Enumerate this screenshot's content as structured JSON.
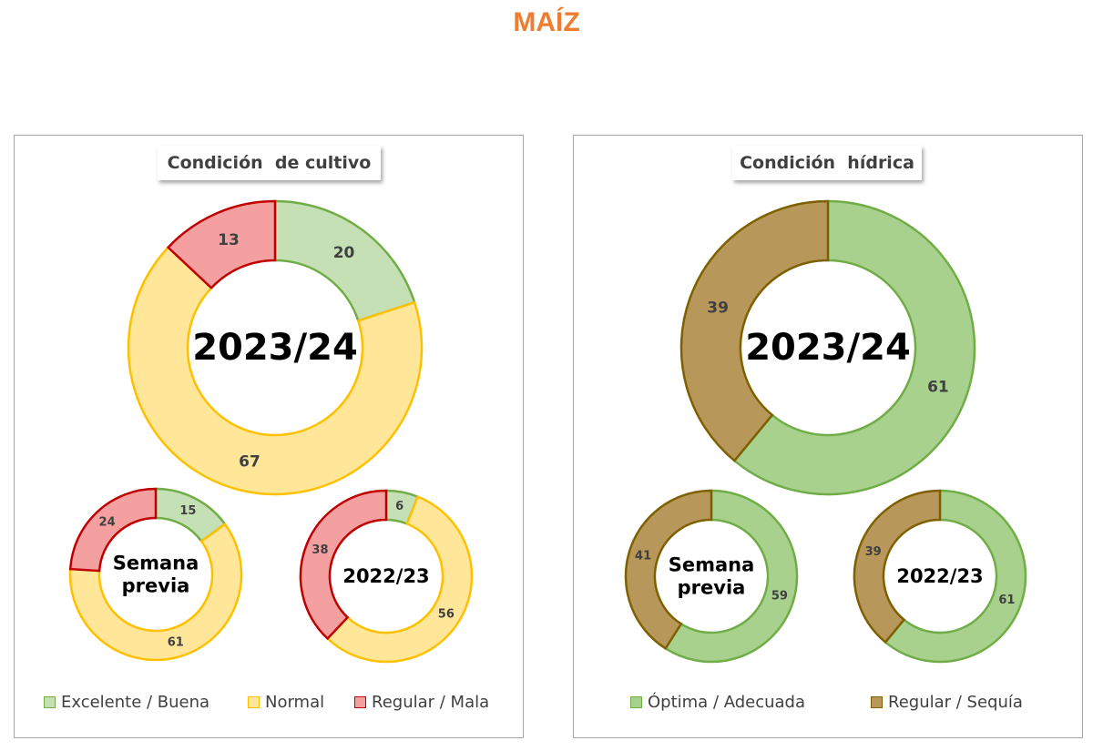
{
  "title": "MAÍZ",
  "title_color": "#ed7d31",
  "panels": [
    {
      "title": "Condición  de cultivo",
      "legend": [
        {
          "label": "Excelente / Buena",
          "fill": "#c5e0b4",
          "stroke": "#70ad47"
        },
        {
          "label": "Normal",
          "fill": "#ffe699",
          "stroke": "#ffc000"
        },
        {
          "label": "Regular / Mala",
          "fill": "#f4a0a0",
          "stroke": "#c00000"
        }
      ]
    },
    {
      "title": "Condición  hídrica",
      "legend": [
        {
          "label": "Óptima / Adecuada",
          "fill": "#a9d18e",
          "stroke": "#70ad47"
        },
        {
          "label": "Regular / Sequía",
          "fill": "#b8975a",
          "stroke": "#7f6000"
        }
      ]
    }
  ],
  "chart_data": [
    {
      "type": "pie",
      "variant": "donut",
      "center_label": "2023/24",
      "categories": [
        "Excelente / Buena",
        "Normal",
        "Regular / Mala"
      ],
      "values": [
        20,
        67,
        13
      ],
      "colors": [
        "#c5e0b4",
        "#ffe699",
        "#f4a0a0"
      ],
      "strokes": [
        "#70ad47",
        "#ffc000",
        "#c00000"
      ]
    },
    {
      "type": "pie",
      "variant": "donut",
      "center_label": "Semana previa",
      "categories": [
        "Excelente / Buena",
        "Normal",
        "Regular / Mala"
      ],
      "values": [
        15,
        61,
        24
      ],
      "colors": [
        "#c5e0b4",
        "#ffe699",
        "#f4a0a0"
      ],
      "strokes": [
        "#70ad47",
        "#ffc000",
        "#c00000"
      ]
    },
    {
      "type": "pie",
      "variant": "donut",
      "center_label": "2022/23",
      "categories": [
        "Excelente / Buena",
        "Normal",
        "Regular / Mala"
      ],
      "values": [
        6,
        56,
        38
      ],
      "colors": [
        "#c5e0b4",
        "#ffe699",
        "#f4a0a0"
      ],
      "strokes": [
        "#70ad47",
        "#ffc000",
        "#c00000"
      ]
    },
    {
      "type": "pie",
      "variant": "donut",
      "center_label": "2023/24",
      "categories": [
        "Óptima / Adecuada",
        "Regular / Sequía"
      ],
      "values": [
        61,
        39
      ],
      "colors": [
        "#a9d18e",
        "#b8975a"
      ],
      "strokes": [
        "#70ad47",
        "#7f6000"
      ]
    },
    {
      "type": "pie",
      "variant": "donut",
      "center_label": "Semana previa",
      "categories": [
        "Óptima / Adecuada",
        "Regular / Sequía"
      ],
      "values": [
        59,
        41
      ],
      "colors": [
        "#a9d18e",
        "#b8975a"
      ],
      "strokes": [
        "#70ad47",
        "#7f6000"
      ]
    },
    {
      "type": "pie",
      "variant": "donut",
      "center_label": "2022/23",
      "categories": [
        "Óptima / Adecuada",
        "Regular / Sequía"
      ],
      "values": [
        61,
        39
      ],
      "colors": [
        "#a9d18e",
        "#b8975a"
      ],
      "strokes": [
        "#70ad47",
        "#7f6000"
      ]
    }
  ]
}
